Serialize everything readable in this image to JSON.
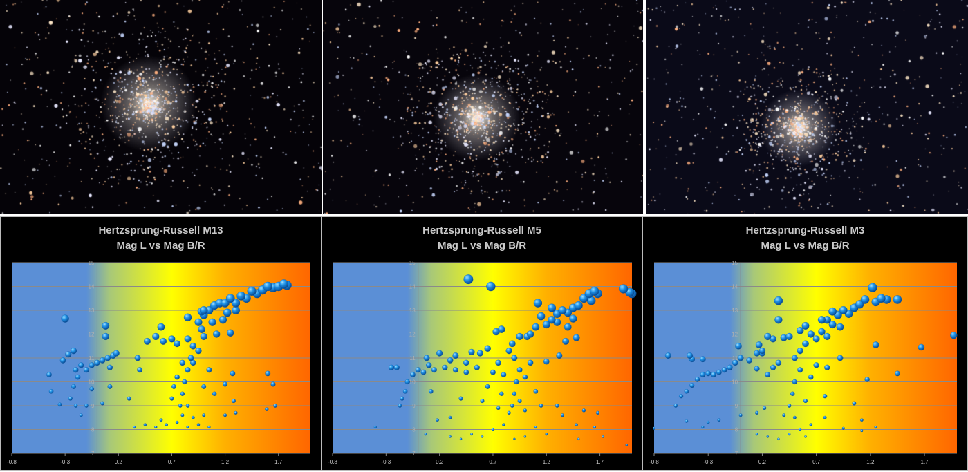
{
  "photos": [
    {
      "name": "M13",
      "background": "#050308"
    },
    {
      "name": "M5",
      "background": "#07050c"
    },
    {
      "name": "M3",
      "background": "#0a0a18"
    }
  ],
  "chart_data": [
    {
      "type": "scatter",
      "title": "Hertzsprung-Russell  M13",
      "subtitle": "Mag L vs Mag B/R",
      "xlim": [
        -0.8,
        2.0
      ],
      "ylim": [
        7,
        15
      ],
      "xticks": [
        "-0.8",
        "-0.3",
        "0.2",
        "0.7",
        "1.2",
        "1.7"
      ],
      "yticks": [
        "7",
        "8",
        "9",
        "10",
        "11",
        "12",
        "13",
        "14",
        "15"
      ],
      "grid": true,
      "marker_color": "#1e90e6",
      "background_gradient": [
        "#5b8fd6",
        "#ffff00",
        "#ff6600"
      ],
      "points": [
        [
          0.95,
          12.5
        ],
        [
          1.0,
          12.8
        ],
        [
          1.05,
          13.0
        ],
        [
          1.1,
          13.2
        ],
        [
          1.15,
          13.3
        ],
        [
          1.2,
          13.3
        ],
        [
          1.25,
          13.5
        ],
        [
          1.3,
          13.3
        ],
        [
          1.35,
          13.6
        ],
        [
          1.4,
          13.5
        ],
        [
          1.45,
          13.8
        ],
        [
          1.5,
          13.7
        ],
        [
          1.55,
          13.85
        ],
        [
          1.6,
          14.0
        ],
        [
          1.65,
          13.95
        ],
        [
          1.7,
          14.0
        ],
        [
          1.78,
          14.05
        ],
        [
          1.75,
          14.1
        ],
        [
          1.0,
          13.0
        ],
        [
          0.98,
          12.2
        ],
        [
          1.0,
          11.9
        ],
        [
          1.08,
          12.5
        ],
        [
          1.12,
          12.0
        ],
        [
          1.18,
          12.6
        ],
        [
          1.22,
          12.9
        ],
        [
          1.3,
          13.0
        ],
        [
          1.25,
          12.05
        ],
        [
          0.85,
          11.8
        ],
        [
          0.9,
          11.5
        ],
        [
          0.88,
          11.0
        ],
        [
          0.85,
          10.5
        ],
        [
          0.82,
          10.0
        ],
        [
          0.8,
          9.5
        ],
        [
          0.78,
          9.0
        ],
        [
          0.85,
          9.0
        ],
        [
          0.9,
          10.8
        ],
        [
          0.95,
          11.3
        ],
        [
          0.75,
          11.6
        ],
        [
          0.7,
          11.8
        ],
        [
          0.8,
          10.8
        ],
        [
          0.75,
          10.2
        ],
        [
          0.72,
          9.8
        ],
        [
          0.7,
          9.3
        ],
        [
          0.8,
          8.6
        ],
        [
          0.9,
          8.5
        ],
        [
          0.75,
          8.3
        ],
        [
          0.85,
          8.1
        ],
        [
          0.95,
          8.2
        ],
        [
          0.65,
          8.2
        ],
        [
          0.6,
          8.4
        ],
        [
          1.0,
          8.6
        ],
        [
          1.05,
          8.1
        ],
        [
          0.55,
          8.1
        ],
        [
          0.45,
          8.2
        ],
        [
          0.35,
          8.1
        ],
        [
          1.1,
          9.5
        ],
        [
          1.0,
          9.8
        ],
        [
          1.05,
          10.5
        ],
        [
          0.62,
          11.7
        ],
        [
          0.55,
          11.9
        ],
        [
          0.47,
          11.7
        ],
        [
          0.38,
          11.0
        ],
        [
          0.4,
          10.5
        ],
        [
          0.6,
          12.3
        ],
        [
          0.85,
          12.7
        ],
        [
          0.98,
          12.95
        ],
        [
          0.3,
          9.3
        ],
        [
          -0.45,
          10.3
        ],
        [
          -0.43,
          9.6
        ],
        [
          -0.3,
          12.65
        ],
        [
          -0.32,
          10.9
        ],
        [
          -0.27,
          11.15
        ],
        [
          -0.22,
          11.3
        ],
        [
          -0.2,
          10.5
        ],
        [
          -0.15,
          10.7
        ],
        [
          -0.1,
          10.5
        ],
        [
          -0.05,
          10.7
        ],
        [
          0.0,
          10.8
        ],
        [
          0.05,
          10.9
        ],
        [
          0.1,
          11.0
        ],
        [
          0.15,
          11.1
        ],
        [
          0.18,
          11.2
        ],
        [
          0.12,
          10.6
        ],
        [
          -0.18,
          10.2
        ],
        [
          -0.22,
          9.8
        ],
        [
          -0.25,
          9.3
        ],
        [
          -0.2,
          9.0
        ],
        [
          -0.15,
          8.6
        ],
        [
          -0.1,
          9.0
        ],
        [
          -0.05,
          9.7
        ],
        [
          0.08,
          12.35
        ],
        [
          0.08,
          11.9
        ],
        [
          0.12,
          9.8
        ],
        [
          0.05,
          9.1
        ],
        [
          -0.35,
          9.05
        ],
        [
          1.6,
          10.35
        ],
        [
          1.65,
          9.9
        ],
        [
          1.67,
          9.0
        ],
        [
          1.59,
          8.85
        ],
        [
          1.27,
          10.35
        ],
        [
          1.2,
          9.9
        ],
        [
          1.28,
          9.2
        ],
        [
          1.2,
          8.6
        ],
        [
          1.3,
          8.7
        ]
      ]
    },
    {
      "type": "scatter",
      "title": "Hertzsprung-Russell M5",
      "subtitle": "Mag L vs Mag B/R",
      "xlim": [
        -0.8,
        2.0
      ],
      "ylim": [
        7,
        15
      ],
      "xticks": [
        "-0.8",
        "-0.3",
        "0.2",
        "0.7",
        "1.2",
        "1.7"
      ],
      "yticks": [
        "7",
        "8",
        "9",
        "10",
        "11",
        "12",
        "13",
        "14",
        "15"
      ],
      "grid": true,
      "marker_color": "#1e90e6",
      "background_gradient": [
        "#5b8fd6",
        "#ffff00",
        "#ff6600"
      ],
      "points": [
        [
          0.47,
          14.3
        ],
        [
          0.68,
          14.0
        ],
        [
          1.12,
          13.3
        ],
        [
          1.25,
          13.1
        ],
        [
          1.3,
          12.85
        ],
        [
          1.35,
          13.0
        ],
        [
          1.4,
          12.9
        ],
        [
          1.45,
          13.1
        ],
        [
          1.5,
          13.2
        ],
        [
          1.55,
          13.5
        ],
        [
          1.6,
          13.7
        ],
        [
          1.65,
          13.8
        ],
        [
          1.68,
          13.7
        ],
        [
          1.62,
          13.4
        ],
        [
          1.92,
          13.9
        ],
        [
          1.98,
          13.75
        ],
        [
          2.0,
          13.7
        ],
        [
          1.15,
          12.75
        ],
        [
          1.1,
          12.3
        ],
        [
          1.05,
          12.0
        ],
        [
          1.2,
          12.4
        ],
        [
          1.25,
          12.6
        ],
        [
          1.3,
          12.5
        ],
        [
          1.4,
          12.3
        ],
        [
          1.45,
          12.65
        ],
        [
          1.48,
          11.85
        ],
        [
          1.38,
          11.7
        ],
        [
          1.32,
          11.1
        ],
        [
          1.2,
          10.85
        ],
        [
          1.02,
          11.9
        ],
        [
          0.95,
          11.9
        ],
        [
          0.88,
          11.6
        ],
        [
          0.78,
          12.2
        ],
        [
          0.73,
          12.1
        ],
        [
          0.85,
          11.3
        ],
        [
          0.9,
          11.0
        ],
        [
          0.95,
          10.5
        ],
        [
          0.92,
          10.0
        ],
        [
          0.9,
          9.5
        ],
        [
          0.88,
          9.0
        ],
        [
          0.85,
          8.7
        ],
        [
          0.95,
          9.2
        ],
        [
          1.0,
          10.2
        ],
        [
          1.05,
          10.8
        ],
        [
          1.1,
          9.6
        ],
        [
          1.15,
          9.0
        ],
        [
          1.0,
          8.8
        ],
        [
          0.75,
          8.9
        ],
        [
          0.78,
          9.5
        ],
        [
          0.8,
          8.2
        ],
        [
          0.7,
          8.0
        ],
        [
          1.1,
          8.1
        ],
        [
          1.2,
          7.8
        ],
        [
          0.6,
          7.7
        ],
        [
          0.5,
          7.8
        ],
        [
          0.4,
          7.6
        ],
        [
          0.3,
          7.7
        ],
        [
          0.9,
          7.6
        ],
        [
          1.0,
          7.7
        ],
        [
          1.3,
          9.0
        ],
        [
          1.35,
          8.6
        ],
        [
          1.55,
          8.8
        ],
        [
          1.68,
          8.7
        ],
        [
          1.48,
          8.2
        ],
        [
          1.65,
          8.1
        ],
        [
          1.73,
          7.7
        ],
        [
          1.95,
          7.35
        ],
        [
          1.5,
          7.6
        ],
        [
          -0.4,
          8.1
        ],
        [
          0.07,
          7.8
        ],
        [
          0.18,
          8.4
        ],
        [
          0.3,
          8.5
        ],
        [
          0.4,
          9.3
        ],
        [
          0.6,
          9.2
        ],
        [
          0.65,
          9.8
        ],
        [
          0.2,
          11.2
        ],
        [
          0.3,
          10.9
        ],
        [
          0.35,
          11.1
        ],
        [
          0.45,
          10.8
        ],
        [
          0.5,
          11.25
        ],
        [
          0.58,
          11.2
        ],
        [
          0.65,
          11.4
        ],
        [
          0.55,
          10.6
        ],
        [
          0.45,
          10.4
        ],
        [
          0.35,
          10.5
        ],
        [
          0.25,
          10.6
        ],
        [
          0.15,
          10.5
        ],
        [
          0.1,
          10.7
        ],
        [
          0.05,
          10.4
        ],
        [
          0.0,
          10.5
        ],
        [
          -0.05,
          10.3
        ],
        [
          -0.1,
          10.0
        ],
        [
          -0.12,
          9.6
        ],
        [
          -0.15,
          9.3
        ],
        [
          -0.17,
          9.0
        ],
        [
          -0.2,
          10.6
        ],
        [
          -0.25,
          10.6
        ],
        [
          0.08,
          11.0
        ],
        [
          0.12,
          9.6
        ],
        [
          0.7,
          10.4
        ],
        [
          0.75,
          10.8
        ],
        [
          0.8,
          10.3
        ]
      ]
    },
    {
      "type": "scatter",
      "title": "Hertzsprung-Russell  M3",
      "subtitle": "Mag L vs Mag B/R",
      "xlim": [
        -0.8,
        2.0
      ],
      "ylim": [
        7,
        15
      ],
      "xticks": [
        "-0.8",
        "-0.3",
        "0.2",
        "0.7",
        "1.2",
        "1.7"
      ],
      "yticks": [
        "7",
        "8",
        "9",
        "10",
        "11",
        "12",
        "13",
        "14",
        "15"
      ],
      "grid": true,
      "marker_color": "#1e90e6",
      "background_gradient": [
        "#5b8fd6",
        "#ffff00",
        "#ff6600"
      ],
      "points": [
        [
          0.35,
          13.4
        ],
        [
          0.35,
          12.6
        ],
        [
          1.22,
          13.95
        ],
        [
          1.45,
          13.45
        ],
        [
          1.3,
          13.5
        ],
        [
          1.35,
          13.45
        ],
        [
          1.25,
          13.35
        ],
        [
          1.15,
          13.45
        ],
        [
          1.1,
          13.25
        ],
        [
          1.05,
          13.1
        ],
        [
          1.0,
          12.85
        ],
        [
          0.95,
          13.0
        ],
        [
          0.9,
          12.8
        ],
        [
          0.85,
          12.95
        ],
        [
          0.8,
          12.6
        ],
        [
          0.75,
          12.6
        ],
        [
          0.85,
          12.4
        ],
        [
          0.92,
          12.3
        ],
        [
          0.6,
          12.35
        ],
        [
          0.55,
          12.15
        ],
        [
          0.65,
          12.0
        ],
        [
          0.7,
          11.8
        ],
        [
          0.75,
          12.1
        ],
        [
          0.8,
          11.9
        ],
        [
          0.6,
          11.6
        ],
        [
          0.55,
          11.3
        ],
        [
          0.5,
          11.0
        ],
        [
          0.55,
          10.5
        ],
        [
          0.5,
          10.0
        ],
        [
          0.48,
          9.5
        ],
        [
          0.45,
          9.0
        ],
        [
          0.4,
          8.6
        ],
        [
          0.5,
          8.5
        ],
        [
          0.55,
          8.0
        ],
        [
          0.45,
          7.8
        ],
        [
          0.35,
          7.6
        ],
        [
          0.25,
          7.7
        ],
        [
          0.15,
          7.8
        ],
        [
          0.6,
          7.7
        ],
        [
          0.65,
          8.2
        ],
        [
          0.6,
          9.2
        ],
        [
          0.65,
          10.2
        ],
        [
          0.7,
          10.7
        ],
        [
          0.3,
          11.8
        ],
        [
          0.25,
          11.9
        ],
        [
          0.4,
          11.85
        ],
        [
          0.45,
          11.9
        ],
        [
          0.2,
          11.2
        ],
        [
          0.15,
          11.2
        ],
        [
          0.2,
          11.3
        ],
        [
          0.08,
          10.9
        ],
        [
          0.0,
          11.0
        ],
        [
          -0.05,
          10.8
        ],
        [
          -0.1,
          10.6
        ],
        [
          -0.15,
          10.5
        ],
        [
          -0.2,
          10.4
        ],
        [
          -0.25,
          10.3
        ],
        [
          -0.3,
          10.35
        ],
        [
          -0.35,
          10.3
        ],
        [
          -0.4,
          10.1
        ],
        [
          -0.45,
          9.85
        ],
        [
          -0.5,
          9.6
        ],
        [
          -0.55,
          9.4
        ],
        [
          -0.6,
          9.0
        ],
        [
          -0.67,
          11.1
        ],
        [
          -0.47,
          11.1
        ],
        [
          -0.45,
          10.95
        ],
        [
          -0.35,
          10.95
        ],
        [
          0.15,
          10.55
        ],
        [
          0.25,
          10.3
        ],
        [
          0.3,
          10.6
        ],
        [
          0.35,
          10.8
        ],
        [
          -0.02,
          11.5
        ],
        [
          0.17,
          11.55
        ],
        [
          1.25,
          11.55
        ],
        [
          1.67,
          11.45
        ],
        [
          1.97,
          11.95
        ],
        [
          0.92,
          11.0
        ],
        [
          1.45,
          10.35
        ],
        [
          1.17,
          10.1
        ],
        [
          1.05,
          9.1
        ],
        [
          1.12,
          8.4
        ],
        [
          1.25,
          8.1
        ],
        [
          0.95,
          8.05
        ],
        [
          1.12,
          7.95
        ],
        [
          -0.8,
          8.05
        ],
        [
          -0.5,
          8.35
        ],
        [
          -0.3,
          8.3
        ],
        [
          -0.2,
          8.4
        ],
        [
          -0.35,
          8.1
        ],
        [
          0.0,
          8.6
        ],
        [
          0.15,
          8.7
        ],
        [
          0.22,
          8.9
        ],
        [
          0.78,
          9.4
        ],
        [
          0.78,
          8.5
        ],
        [
          0.8,
          10.6
        ]
      ]
    }
  ]
}
